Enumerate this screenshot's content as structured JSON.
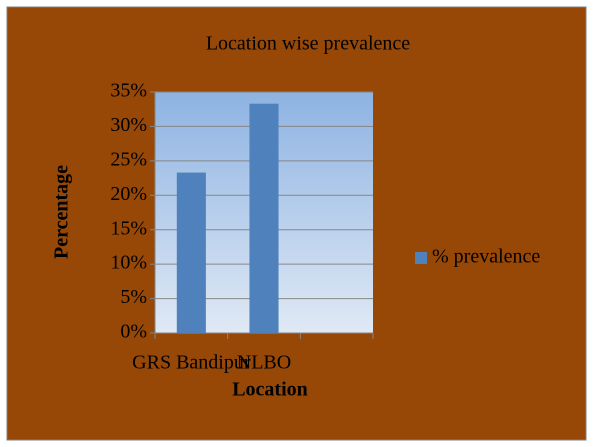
{
  "chart_data": {
    "type": "bar",
    "title": "Location wise prevalence",
    "x_label": "Location",
    "y_label": "Percentage",
    "categories": [
      "GRS Bandipur",
      "NLBO",
      null
    ],
    "series": [
      {
        "name": "% prevalence",
        "color": "#4f81bd",
        "values": [
          23.3,
          33.3,
          null
        ]
      }
    ],
    "ylim": [
      0,
      35
    ],
    "yticks": [
      {
        "value": 0,
        "label": "0%"
      },
      {
        "value": 5,
        "label": "5%"
      },
      {
        "value": 10,
        "label": "10%"
      },
      {
        "value": 15,
        "label": "15%"
      },
      {
        "value": 20,
        "label": "20%"
      },
      {
        "value": 25,
        "label": "25%"
      },
      {
        "value": 30,
        "label": "30%"
      },
      {
        "value": 35,
        "label": "35%"
      }
    ],
    "grid": true,
    "legend": "right"
  }
}
